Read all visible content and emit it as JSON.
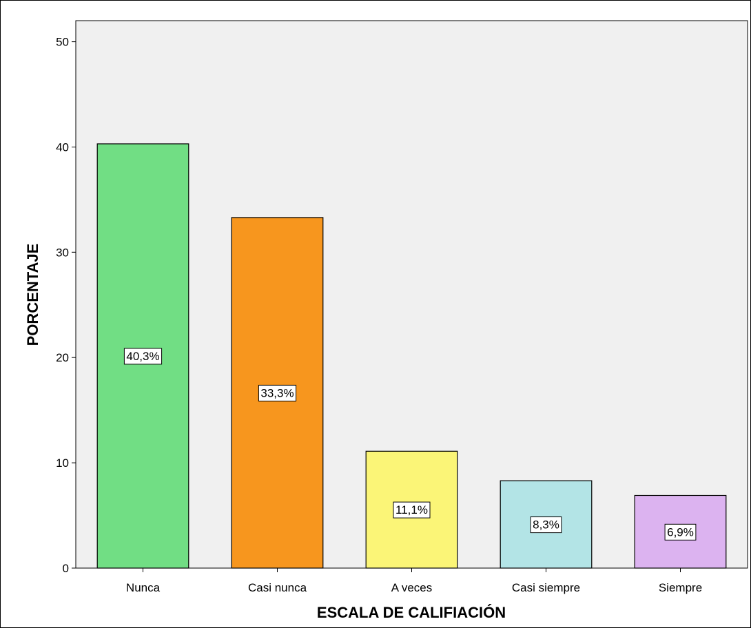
{
  "chart_data": {
    "type": "bar",
    "categories": [
      "Nunca",
      "Casi nunca",
      "A veces",
      "Casi siempre",
      "Siempre"
    ],
    "values": [
      40.3,
      33.3,
      11.1,
      8.3,
      6.9
    ],
    "data_labels": [
      "40,3%",
      "33,3%",
      "11,1%",
      "8,3%",
      "6,9%"
    ],
    "colors": [
      "#71de84",
      "#f7961e",
      "#fbf577",
      "#b3e4e6",
      "#dcb3f0"
    ],
    "xlabel": "ESCALA DE CALIFIACIÓN",
    "ylabel": "PORCENTAJE",
    "ylim": [
      0,
      52
    ],
    "yticks": [
      "0",
      "10",
      "20",
      "30",
      "40",
      "50"
    ],
    "plot_background": "#f0f0f0",
    "grid": false
  }
}
